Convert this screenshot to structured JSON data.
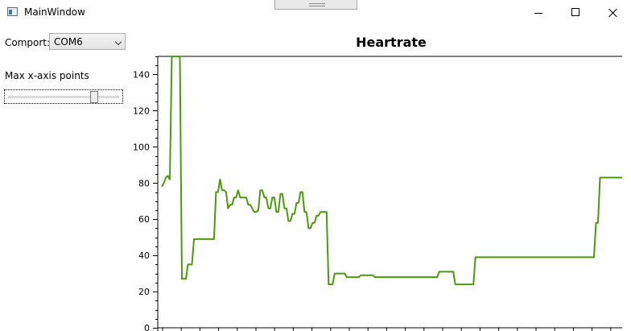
{
  "window": {
    "title": "MainWindow"
  },
  "icons": {
    "app": "app-window-icon",
    "minimize": "minimize-icon",
    "maximize": "maximize-icon",
    "close": "close-icon",
    "dropdown": "chevron-down-icon"
  },
  "comport": {
    "label": "Comport:",
    "value": "COM6"
  },
  "max_points": {
    "label": "Max x-axis points",
    "slider_value_fraction": 0.8
  },
  "chart_data": {
    "type": "line",
    "title": "Heartrate",
    "xlabel": "",
    "ylabel": "",
    "ylim": [
      0,
      150
    ],
    "yticks": [
      0,
      20,
      40,
      60,
      80,
      100,
      120,
      140
    ],
    "grid": false,
    "color": "#4a9a0c",
    "series": [
      {
        "values": [
          78,
          80,
          83,
          84,
          82,
          150,
          150,
          150,
          150,
          150,
          27,
          27,
          27,
          35,
          35,
          35,
          49,
          49,
          49,
          49,
          49,
          49,
          49,
          49,
          49,
          49,
          49,
          75,
          75,
          82,
          76,
          76,
          75,
          66,
          68,
          68,
          72,
          72,
          76,
          72,
          72,
          72,
          72,
          68,
          68,
          66,
          64,
          64,
          65,
          76,
          76,
          72,
          72,
          66,
          66,
          72,
          72,
          64,
          64,
          74,
          74,
          66,
          66,
          59,
          59,
          63,
          63,
          69,
          69,
          75,
          75,
          64,
          64,
          55,
          55,
          58,
          58,
          62,
          62,
          64,
          64,
          64,
          64,
          24,
          24,
          24,
          30,
          30,
          30,
          30,
          30,
          30,
          28,
          28,
          28,
          28,
          28,
          28,
          28,
          29,
          29,
          29,
          29,
          29,
          29,
          29,
          28,
          28,
          28,
          28,
          28,
          28,
          28,
          28,
          28,
          28,
          28,
          28,
          28,
          28,
          28,
          28,
          28,
          28,
          28,
          28,
          28,
          28,
          28,
          28,
          28,
          28,
          28,
          28,
          28,
          28,
          28,
          28,
          31,
          31,
          31,
          31,
          31,
          31,
          31,
          31,
          24,
          24,
          24,
          24,
          24,
          24,
          24,
          24,
          24,
          24,
          39,
          39,
          39,
          39,
          39,
          39,
          39,
          39,
          39,
          39,
          39,
          39,
          39,
          39,
          39,
          39,
          39,
          39,
          39,
          39,
          39,
          39,
          39,
          39,
          39,
          39,
          39,
          39,
          39,
          39,
          39,
          39,
          39,
          39,
          39,
          39,
          39,
          39,
          39,
          39,
          39,
          39,
          39,
          39,
          39,
          39,
          39,
          39,
          39,
          39,
          39,
          39,
          39,
          39,
          39,
          39,
          39,
          39,
          39,
          39,
          58,
          58,
          83,
          83,
          83,
          83,
          83,
          83,
          83,
          83,
          83,
          83,
          83,
          83
        ]
      }
    ]
  }
}
